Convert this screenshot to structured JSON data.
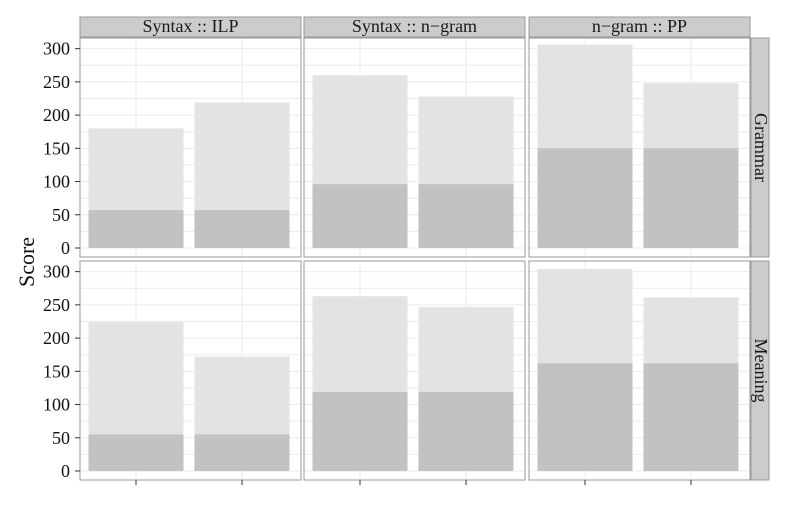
{
  "chart_data": {
    "type": "bar",
    "ylabel": "Score",
    "xlabel": "",
    "ylim": [
      0,
      310
    ],
    "yticks": [
      0,
      50,
      100,
      150,
      200,
      250,
      300
    ],
    "columns": [
      "Syntax :: ILP",
      "Syntax :: n−gram",
      "n−gram :: PP"
    ],
    "rows": [
      "Grammar",
      "Meaning"
    ],
    "x_tick_labels": [
      "",
      ""
    ],
    "colors": {
      "total": "#e3e3e3",
      "base": "#c2c2c2"
    },
    "panels": [
      {
        "column": "Syntax :: ILP",
        "row": "Grammar",
        "totals": [
          180,
          219
        ],
        "bases": [
          57,
          57
        ]
      },
      {
        "column": "Syntax :: n−gram",
        "row": "Grammar",
        "totals": [
          260,
          228
        ],
        "bases": [
          96,
          96
        ]
      },
      {
        "column": "n−gram :: PP",
        "row": "Grammar",
        "totals": [
          306,
          248
        ],
        "bases": [
          150,
          150
        ]
      },
      {
        "column": "Syntax :: ILP",
        "row": "Meaning",
        "totals": [
          224,
          172
        ],
        "bases": [
          55,
          55
        ]
      },
      {
        "column": "Syntax :: n−gram",
        "row": "Meaning",
        "totals": [
          263,
          247
        ],
        "bases": [
          119,
          119
        ]
      },
      {
        "column": "n−gram :: PP",
        "row": "Meaning",
        "totals": [
          304,
          261
        ],
        "bases": [
          162,
          162
        ]
      }
    ]
  }
}
